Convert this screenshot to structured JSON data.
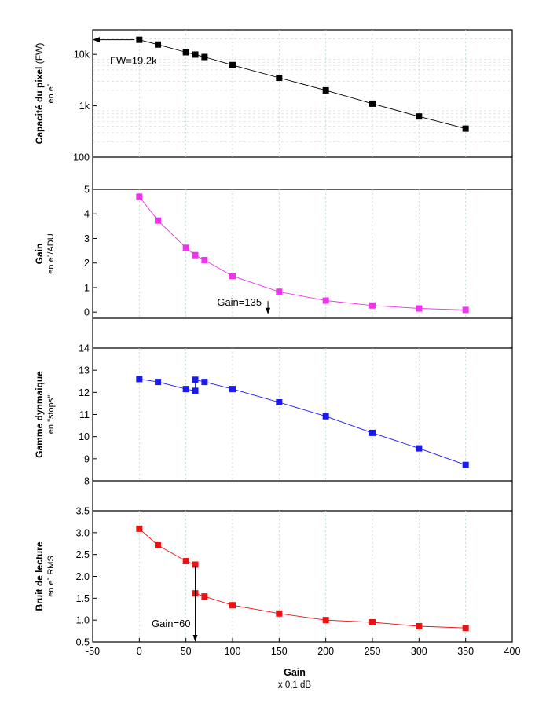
{
  "chart_data": {
    "type": "line",
    "x_axis": {
      "title": "Gain",
      "subtitle": "x 0,1 dB",
      "range": [
        -50,
        400
      ],
      "ticks": [
        "-50",
        "0",
        "50",
        "100",
        "150",
        "200",
        "250",
        "300",
        "350",
        "400"
      ]
    },
    "panels": [
      {
        "id": "fw",
        "ylabel_bold": "Capacité du pixel",
        "ylabel_normal": " (FW)",
        "ylabel_sub": "en e",
        "ylabel_sup": "-",
        "y_scale": "log",
        "ylim": [
          100,
          30000
        ],
        "yticks": [
          "100",
          "1k",
          "10k"
        ],
        "color": "#000000",
        "x": [
          0,
          20,
          50,
          60,
          70,
          100,
          150,
          200,
          250,
          300,
          350
        ],
        "y": [
          19200,
          15500,
          11000,
          9900,
          8900,
          6200,
          3500,
          2000,
          1100,
          620,
          360
        ],
        "annotation": {
          "text": "FW=19.2k",
          "arrow_to": [
            -50,
            19200
          ]
        }
      },
      {
        "id": "gain",
        "ylabel_bold": "Gain",
        "ylabel_sub": "en e",
        "ylabel_sup": "-",
        "ylabel_sub2": "/ADU",
        "y_scale": "linear",
        "ylim": [
          -0.25,
          5
        ],
        "yticks": [
          "0",
          "1",
          "2",
          "3",
          "4",
          "5"
        ],
        "color": "#ee33ee",
        "x": [
          0,
          20,
          50,
          60,
          70,
          100,
          150,
          200,
          250,
          300,
          350
        ],
        "y": [
          4.7,
          3.73,
          2.62,
          2.32,
          2.12,
          1.47,
          0.83,
          0.47,
          0.27,
          0.15,
          0.09
        ],
        "annotation": {
          "text": "Gain=135",
          "arrow_at": 138
        }
      },
      {
        "id": "dr",
        "ylabel_bold": "Gamme dynmaique",
        "ylabel_sub": "en \"stops\"",
        "y_scale": "linear",
        "ylim": [
          8,
          14
        ],
        "yticks": [
          "8",
          "9",
          "10",
          "11",
          "12",
          "13",
          "14"
        ],
        "color": "#1a1aee",
        "x": [
          0,
          20,
          50,
          60,
          60,
          70,
          100,
          150,
          200,
          250,
          300,
          350
        ],
        "y": [
          12.6,
          12.47,
          12.15,
          12.07,
          12.57,
          12.47,
          12.15,
          11.55,
          10.92,
          10.17,
          9.47,
          8.72
        ]
      },
      {
        "id": "noise",
        "ylabel_bold": "Bruit de lecture",
        "ylabel_sub": "en e",
        "ylabel_sup": "-",
        "ylabel_sub2": " RMS",
        "y_scale": "linear",
        "ylim": [
          0.5,
          3.5
        ],
        "yticks": [
          "0.5",
          "1.0",
          "1.5",
          "2.0",
          "2.5",
          "3.0",
          "3.5"
        ],
        "color": "#ee1111",
        "x": [
          0,
          20,
          50,
          60,
          60,
          70,
          100,
          150,
          200,
          250,
          300,
          350
        ],
        "y": [
          3.09,
          2.71,
          2.35,
          2.27,
          1.61,
          1.54,
          1.34,
          1.15,
          1.0,
          0.95,
          0.86,
          0.82
        ],
        "annotation": {
          "text": "Gain=60",
          "arrow_at": 60
        }
      }
    ]
  }
}
